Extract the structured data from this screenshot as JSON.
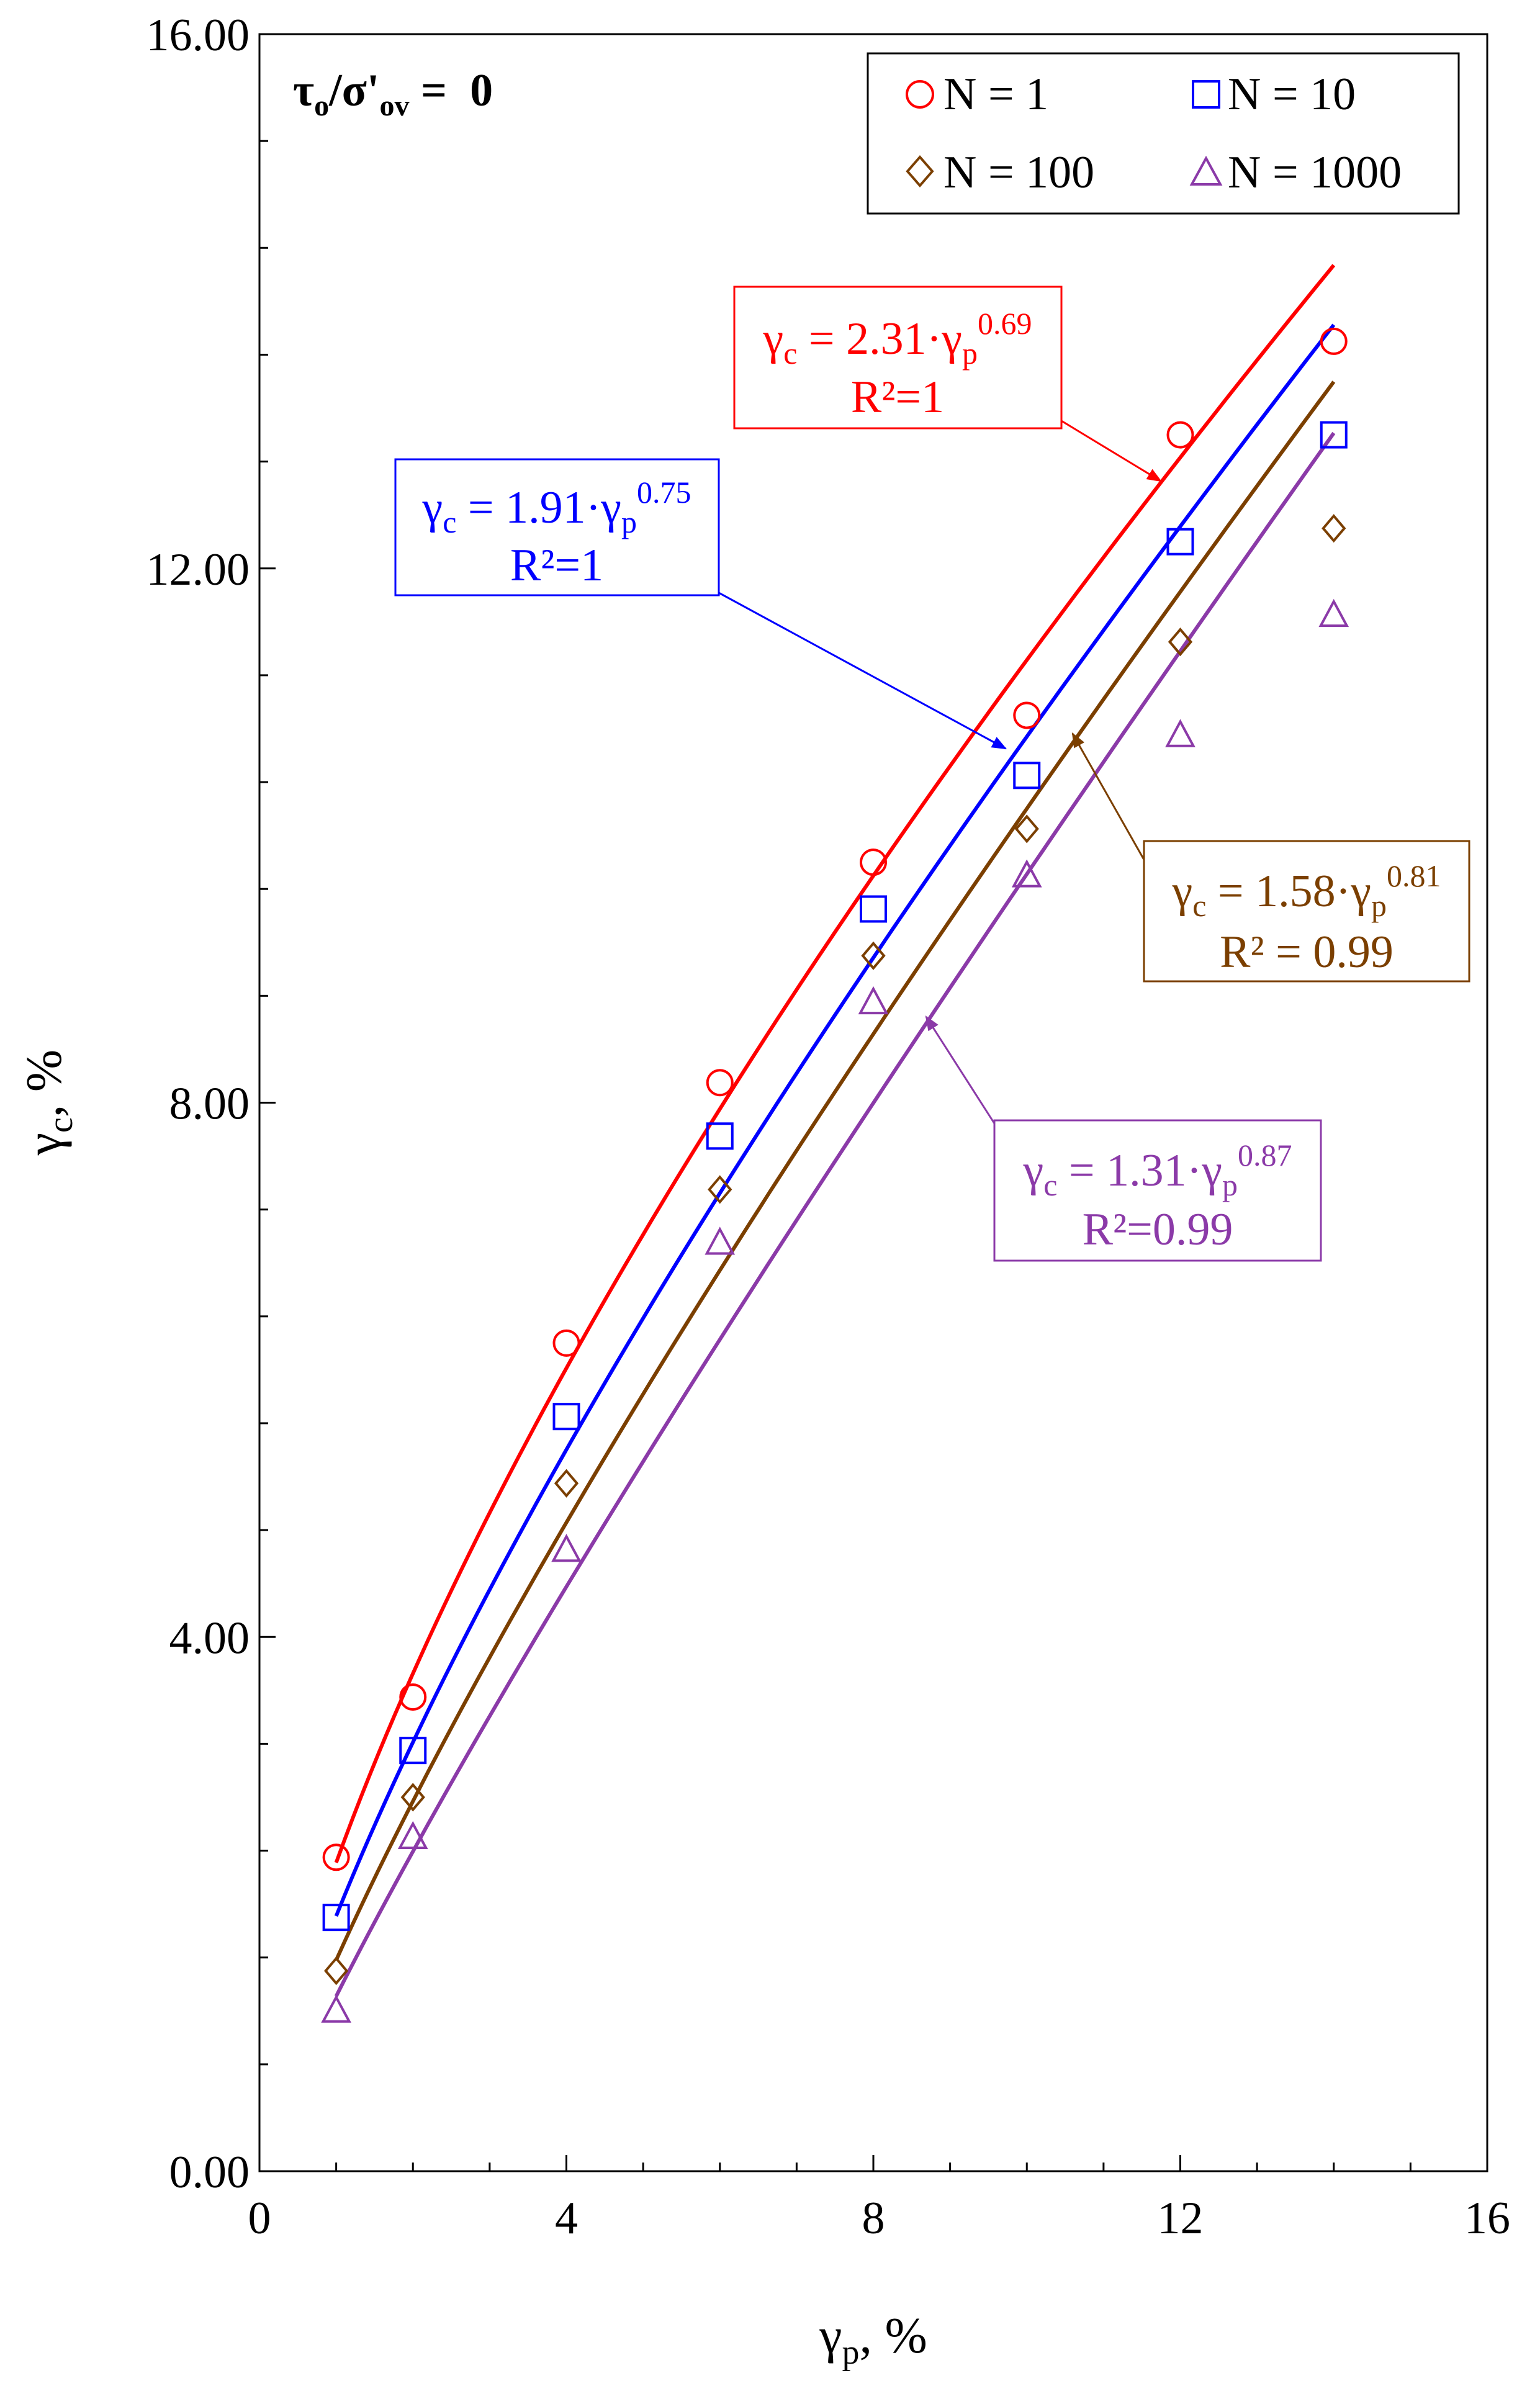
{
  "chart_data": {
    "type": "scatter",
    "xlabel": "γp, %",
    "xlabel_main": "γ",
    "xlabel_sub": "p",
    "xlabel_tail": ", %",
    "ylabel": "γc, %",
    "ylabel_main": "γ",
    "ylabel_sub": "c",
    "ylabel_tail": ", %",
    "xlim": [
      0,
      16
    ],
    "ylim": [
      0,
      16
    ],
    "x_ticks": [
      0,
      4,
      8,
      12,
      16
    ],
    "x_tick_labels": [
      "0",
      "4",
      "8",
      "12",
      "16"
    ],
    "y_ticks": [
      0,
      4,
      8,
      12,
      16
    ],
    "y_tick_labels": [
      "0.00",
      "4.00",
      "8.00",
      "12.00",
      "16.00"
    ],
    "grid": false,
    "legend_position": "top-right",
    "annotation_condition": {
      "a": "τ",
      "a_sub": "o",
      "b": "/σ'",
      "b_sub": "ov",
      "c": " =  0"
    },
    "series": [
      {
        "name": "N = 1",
        "marker": "circle",
        "color": "#ff0000",
        "x": [
          1,
          2,
          4,
          6,
          8,
          10,
          12,
          14
        ],
        "y": [
          2.35,
          3.55,
          6.2,
          8.15,
          9.8,
          10.9,
          13.0,
          13.7
        ],
        "fit": {
          "a": 2.31,
          "b": 0.69
        },
        "equation": {
          "lhs": "γ",
          "lhs_sub": "c",
          "mid": " = 2.31·γ",
          "mid_sub": "p",
          "exp": "0.69",
          "r2": "R²=1"
        }
      },
      {
        "name": "N = 10",
        "marker": "square",
        "color": "#0000ff",
        "x": [
          1,
          2,
          4,
          6,
          8,
          10,
          12,
          14
        ],
        "y": [
          1.9,
          3.15,
          5.65,
          7.75,
          9.45,
          10.45,
          12.2,
          13.0
        ],
        "fit": {
          "a": 1.91,
          "b": 0.75
        },
        "equation": {
          "lhs": "γ",
          "lhs_sub": "c",
          "mid": " = 1.91·γ",
          "mid_sub": "p",
          "exp": "0.75",
          "r2": "R²=1"
        }
      },
      {
        "name": "N = 100",
        "marker": "diamond",
        "color": "#7b3f00",
        "x": [
          1,
          2,
          4,
          6,
          8,
          10,
          12,
          14
        ],
        "y": [
          1.5,
          2.8,
          5.15,
          7.35,
          9.1,
          10.05,
          11.45,
          12.3
        ],
        "fit": {
          "a": 1.58,
          "b": 0.81
        },
        "equation": {
          "lhs": "γ",
          "lhs_sub": "c",
          "mid": " = 1.58·γ",
          "mid_sub": "p",
          "exp": "0.81",
          "r2": "R² = 0.99"
        }
      },
      {
        "name": "N = 1000",
        "marker": "triangle",
        "color": "#8b3aa8",
        "x": [
          1,
          2,
          4,
          6,
          8,
          10,
          12,
          14
        ],
        "y": [
          1.2,
          2.5,
          4.65,
          6.95,
          8.75,
          9.7,
          10.75,
          11.65
        ],
        "fit": {
          "a": 1.31,
          "b": 0.87
        },
        "equation": {
          "lhs": "γ",
          "lhs_sub": "c",
          "mid": " = 1.31·γ",
          "mid_sub": "p",
          "exp": "0.87",
          "r2": "R²=0.99"
        }
      }
    ]
  }
}
